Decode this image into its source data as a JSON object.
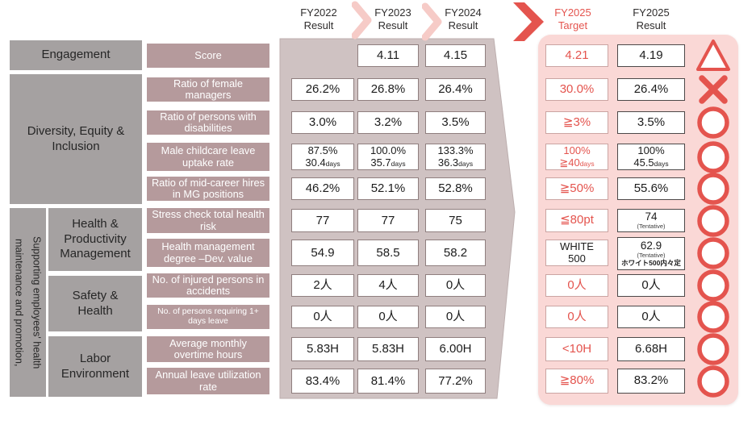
{
  "colors": {
    "accent_red": "#e4544e",
    "panel_pink": "#fad8d6",
    "arrow_mauve": "#cfc2c2",
    "label_mauve": "#b59a9c",
    "category_gray": "#a5a1a1",
    "chevron_light_pink": "#f6cbc7"
  },
  "header": {
    "col_fy2022": {
      "line1": "FY2022",
      "line2": "Result"
    },
    "col_fy2023": {
      "line1": "FY2023",
      "line2": "Result"
    },
    "col_fy2024": {
      "line1": "FY2024",
      "line2": "Result"
    },
    "col_fy2025_target": {
      "line1": "FY2025",
      "line2": "Target"
    },
    "col_fy2025_result": {
      "line1": "FY2025",
      "line2": "Result"
    }
  },
  "left": {
    "vertical_note": "Supporting employees' health maintenance and promotion,",
    "categories": [
      {
        "label": "Engagement"
      },
      {
        "label": "Diversity, Equity & Inclusion"
      },
      {
        "label": "Health & Productivity Management"
      },
      {
        "label": "Safety & Health"
      },
      {
        "label": "Labor Environment"
      }
    ]
  },
  "rows": [
    {
      "metric": "Score",
      "fy2022": null,
      "fy2023": [
        {
          "t": "4.11"
        }
      ],
      "fy2024": [
        {
          "t": "4.15"
        }
      ],
      "target": {
        "lines": [
          {
            "t": "4.21"
          }
        ]
      },
      "result": {
        "lines": [
          {
            "t": "4.19"
          }
        ]
      },
      "status": "triangle"
    },
    {
      "metric": "Ratio of female managers",
      "fy2022": [
        {
          "t": "26.2%"
        }
      ],
      "fy2023": [
        {
          "t": "26.8%"
        }
      ],
      "fy2024": [
        {
          "t": "26.4%"
        }
      ],
      "target": {
        "lines": [
          {
            "t": "30.0%"
          }
        ]
      },
      "result": {
        "lines": [
          {
            "t": "26.4%"
          }
        ]
      },
      "status": "cross"
    },
    {
      "metric": "Ratio of persons with disabilities",
      "fy2022": [
        {
          "t": "3.0%"
        }
      ],
      "fy2023": [
        {
          "t": "3.2%"
        }
      ],
      "fy2024": [
        {
          "t": "3.5%"
        }
      ],
      "target": {
        "lines": [
          {
            "t": "≧3%"
          }
        ]
      },
      "result": {
        "lines": [
          {
            "t": "3.5%"
          }
        ]
      },
      "status": "circle"
    },
    {
      "metric": "Male childcare leave uptake rate",
      "fy2022": [
        {
          "t": "87.5%"
        },
        {
          "t": "30.4",
          "u": "days"
        }
      ],
      "fy2023": [
        {
          "t": "100.0%"
        },
        {
          "t": "35.7",
          "u": "days"
        }
      ],
      "fy2024": [
        {
          "t": "133.3%"
        },
        {
          "t": "36.3",
          "u": "days"
        }
      ],
      "target": {
        "lines": [
          {
            "t": "100%"
          },
          {
            "t": "≧40",
            "u": "days"
          }
        ],
        "multi": true
      },
      "result": {
        "lines": [
          {
            "t": "100%"
          },
          {
            "t": "45.5",
            "u": "days"
          }
        ],
        "multi": true
      },
      "status": "circle"
    },
    {
      "metric": "Ratio of mid-career hires in MG positions",
      "fy2022": [
        {
          "t": "46.2%"
        }
      ],
      "fy2023": [
        {
          "t": "52.1%"
        }
      ],
      "fy2024": [
        {
          "t": "52.8%"
        }
      ],
      "target": {
        "lines": [
          {
            "t": "≧50%"
          }
        ]
      },
      "result": {
        "lines": [
          {
            "t": "55.6%"
          }
        ]
      },
      "status": "circle"
    },
    {
      "metric": "Stress check total health risk",
      "fy2022": [
        {
          "t": "77"
        }
      ],
      "fy2023": [
        {
          "t": "77"
        }
      ],
      "fy2024": [
        {
          "t": "75"
        }
      ],
      "target": {
        "lines": [
          {
            "t": "≦80pt"
          }
        ]
      },
      "result": {
        "lines": [
          {
            "t": "74",
            "cls": "num-sm"
          },
          {
            "t": "(Tentative)",
            "cls": "small"
          }
        ]
      },
      "status": "circle"
    },
    {
      "metric": "Health management degree –Dev. value",
      "fy2022": [
        {
          "t": "54.9"
        }
      ],
      "fy2023": [
        {
          "t": "58.5"
        }
      ],
      "fy2024": [
        {
          "t": "58.2"
        }
      ],
      "target": {
        "lines": [
          {
            "t": "WHITE"
          },
          {
            "t": "500"
          }
        ],
        "black": true,
        "multi": true
      },
      "result": {
        "lines": [
          {
            "t": "62.9",
            "cls": "num-sm"
          },
          {
            "t": "(Tentative)",
            "cls": "small"
          },
          {
            "t": "ホワイト500内々定",
            "cls": "tiny"
          }
        ],
        "tall": true
      },
      "status": "circle"
    },
    {
      "metric": "No. of injured persons in accidents",
      "fy2022": [
        {
          "t": "2人"
        }
      ],
      "fy2023": [
        {
          "t": "4人"
        }
      ],
      "fy2024": [
        {
          "t": "0人"
        }
      ],
      "target": {
        "lines": [
          {
            "t": "0人"
          }
        ]
      },
      "result": {
        "lines": [
          {
            "t": "0人"
          }
        ]
      },
      "status": "circle"
    },
    {
      "metric": "No. of persons requiring 1+ days leave",
      "small_metric": true,
      "fy2022": [
        {
          "t": "0人"
        }
      ],
      "fy2023": [
        {
          "t": "0人"
        }
      ],
      "fy2024": [
        {
          "t": "0人"
        }
      ],
      "target": {
        "lines": [
          {
            "t": "0人"
          }
        ]
      },
      "result": {
        "lines": [
          {
            "t": "0人"
          }
        ]
      },
      "status": "circle"
    },
    {
      "metric": "Average monthly overtime hours",
      "fy2022": [
        {
          "t": "5.83H"
        }
      ],
      "fy2023": [
        {
          "t": "5.83H"
        }
      ],
      "fy2024": [
        {
          "t": "6.00H"
        }
      ],
      "target": {
        "lines": [
          {
            "t": "<10H"
          }
        ]
      },
      "result": {
        "lines": [
          {
            "t": "6.68H"
          }
        ]
      },
      "status": "circle"
    },
    {
      "metric": "Annual leave utilization rate",
      "fy2022": [
        {
          "t": "83.4%"
        }
      ],
      "fy2023": [
        {
          "t": "81.4%"
        }
      ],
      "fy2024": [
        {
          "t": "77.2%"
        }
      ],
      "target": {
        "lines": [
          {
            "t": "≧80%"
          }
        ]
      },
      "result": {
        "lines": [
          {
            "t": "83.2%"
          }
        ]
      },
      "status": "circle"
    }
  ]
}
